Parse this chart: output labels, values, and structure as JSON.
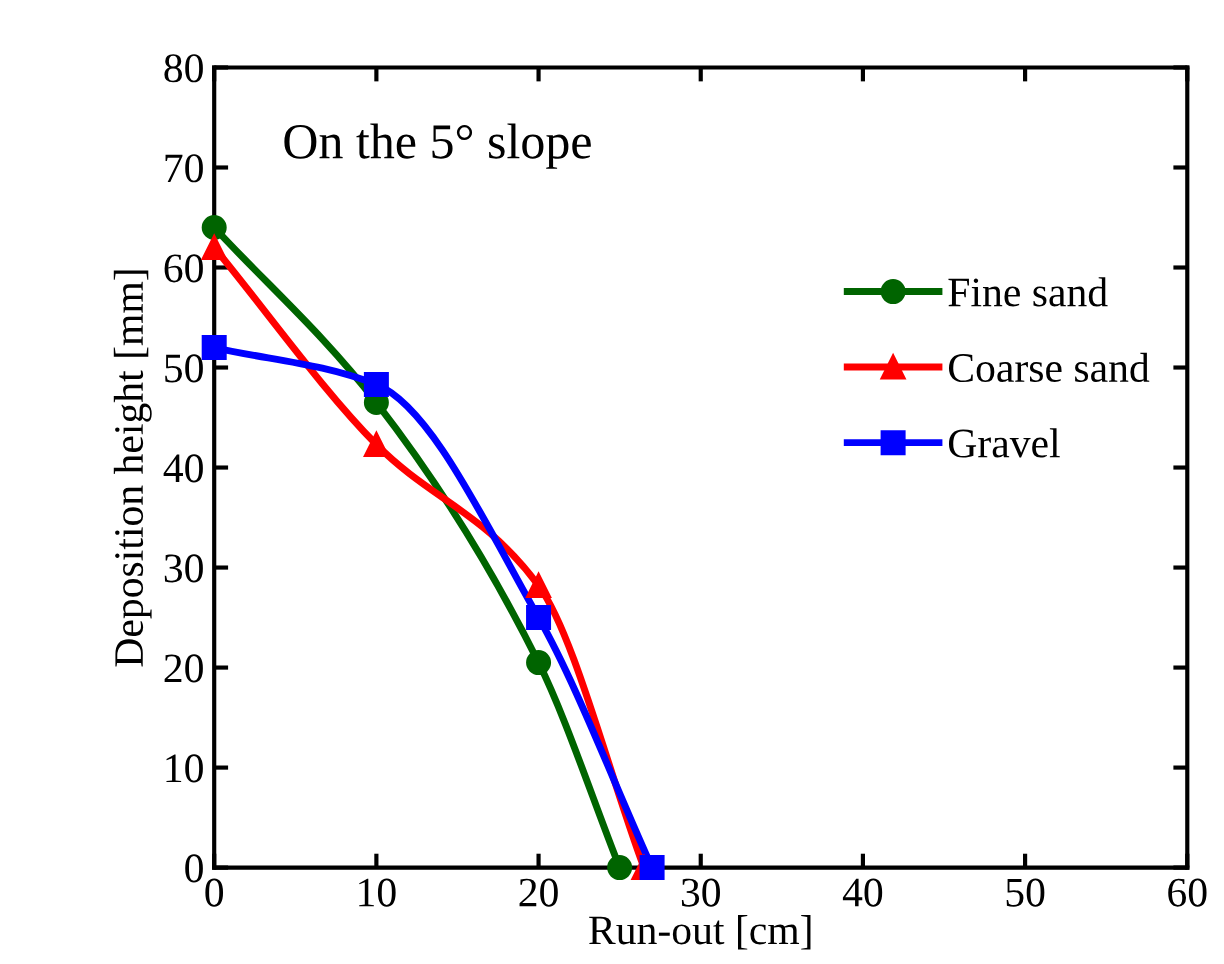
{
  "chart_data": {
    "type": "line",
    "xlabel": "Run-out [cm]",
    "ylabel": "Deposition height [mm]",
    "annotations": [
      "On the 5° slope"
    ],
    "xlim": [
      0,
      60
    ],
    "xticks": [
      0,
      10,
      20,
      30,
      40,
      50,
      60
    ],
    "ylim": [
      0,
      80
    ],
    "yticks": [
      0,
      10,
      20,
      30,
      40,
      50,
      60,
      70,
      80
    ],
    "grid": false,
    "legend": "right",
    "line_style": "solid",
    "series": [
      {
        "name": "Fine sand",
        "color": "#006400",
        "marker": "circle",
        "x": [
          0,
          10,
          20,
          25
        ],
        "values": [
          64,
          46.5,
          20.5,
          0
        ]
      },
      {
        "name": "Coarse sand",
        "color": "#ff0000",
        "marker": "triangle",
        "x": [
          0,
          10,
          20,
          26.5
        ],
        "values": [
          62,
          42.3,
          28.2,
          0
        ]
      },
      {
        "name": "Gravel",
        "color": "#0000ff",
        "marker": "square",
        "x": [
          0,
          10,
          20,
          27
        ],
        "values": [
          52,
          48.3,
          25,
          0
        ]
      }
    ]
  }
}
